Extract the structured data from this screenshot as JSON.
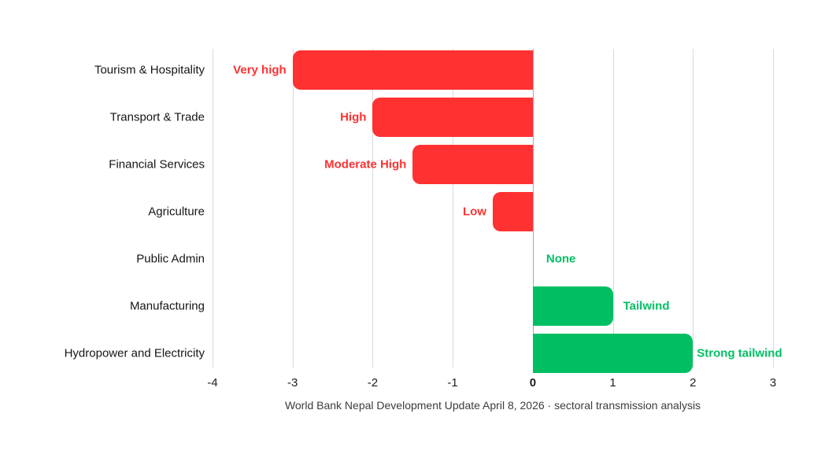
{
  "chart_data": {
    "type": "bar",
    "orientation": "horizontal",
    "title": "",
    "xlabel": "",
    "ylabel": "",
    "categories": [
      "Tourism & Hospitality",
      "Transport & Trade",
      "Financial Services",
      "Agriculture",
      "Public Admin",
      "Manufacturing",
      "Hydropower and Electricity"
    ],
    "values": [
      -3,
      -2,
      -1.5,
      -0.5,
      0,
      1,
      2
    ],
    "bar_labels": [
      "Very high",
      "High",
      "Moderate High",
      "Low",
      "None",
      "Tailwind",
      "Strong tailwind"
    ],
    "xlim": [
      -4,
      3
    ],
    "x_ticks": [
      "-4",
      "-3",
      "-2",
      "-1",
      "0",
      "1",
      "2",
      "3"
    ],
    "x_tick_values": [
      -4,
      -3,
      -2,
      -1,
      0,
      1,
      2,
      3
    ],
    "grid": true,
    "legend": false,
    "colors": {
      "negative_bar": "#ff3131",
      "positive_bar": "#00bf63",
      "gridline": "#d9d9d9",
      "zero_line": "#a9a9a9"
    },
    "caption": "World Bank Nepal Development Update April 8, 2026 · sectoral transmission analysis"
  }
}
